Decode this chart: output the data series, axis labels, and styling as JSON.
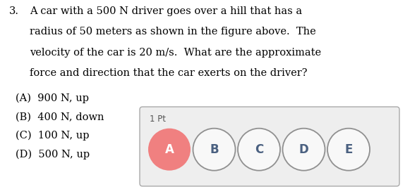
{
  "question_number": "3.",
  "question_text_lines": [
    "A car with a 500 N driver goes over a hill that has a",
    "radius of 50 meters as shown in the figure above.  The",
    "velocity of the car is 20 m/s.  What are the approximate",
    "force and direction that the car exerts on the driver?"
  ],
  "options": [
    "(A)  900 N, up",
    "(B)  400 N, down",
    "(C)  100 N, up",
    "(D)  500 N, up"
  ],
  "answer_labels": [
    "A",
    "B",
    "C",
    "D",
    "E"
  ],
  "selected_answer": "A",
  "points_label": "1 Pt",
  "bg_color": "#ffffff",
  "box_bg_color": "#eeeeee",
  "box_border_color": "#aaaaaa",
  "selected_fill": "#f08080",
  "selected_text_color": "#ffffff",
  "unselected_fill": "#f8f8f8",
  "unselected_text_color": "#4a6080",
  "ellipse_border_color": "#909090",
  "question_font_size": 10.5,
  "option_font_size": 10.5,
  "label_font_size": 12,
  "points_font_size": 8.5,
  "points_text_color": "#555555"
}
